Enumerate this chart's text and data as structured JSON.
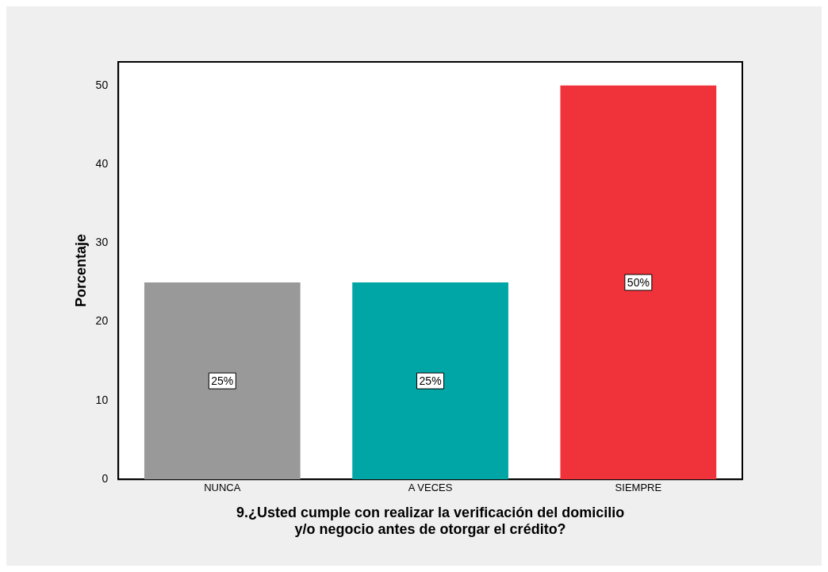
{
  "chart_data": {
    "type": "bar",
    "xlabel": "9.¿Usted cumple con realizar la verificación del domicilio\ny/o negocio antes de otorgar el crédito?",
    "ylabel": "Porcentaje",
    "categories": [
      "NUNCA",
      "A VECES",
      "SIEMPRE"
    ],
    "values": [
      25,
      25,
      50
    ],
    "colors": [
      "#999999",
      "#00a6a6",
      "#f0323a"
    ],
    "value_labels": [
      "25%",
      "25%",
      "50%"
    ],
    "ylim": [
      0,
      53
    ],
    "yticks": [
      0,
      10,
      20,
      30,
      40,
      50
    ],
    "grid": false,
    "legend": false
  }
}
